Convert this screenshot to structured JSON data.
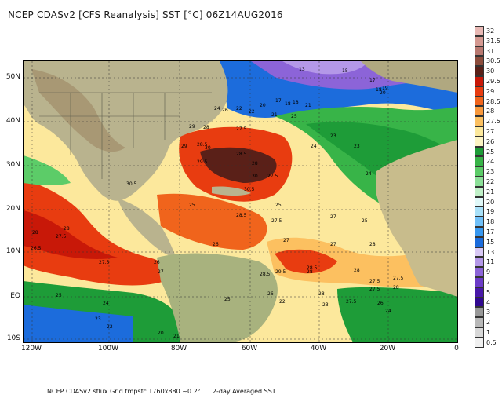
{
  "title": "NCEP CDASv2 [CFS Reanalysis] SST [°C] 06Z14AUG2016",
  "footer": {
    "left": "NCEP CDASv2 sflux Grid tmpsfc 1760x880 ~0.2°",
    "right": "2-day Averaged SST"
  },
  "lat_labels": [
    "50N",
    "40N",
    "30N",
    "20N",
    "10N",
    "EQ",
    "10S"
  ],
  "lon_labels": [
    "120W",
    "100W",
    "80W",
    "60W",
    "40W",
    "20W",
    "0"
  ],
  "colorbar": {
    "labels": [
      "32",
      "31.5",
      "31",
      "30.5",
      "30",
      "29.5",
      "29",
      "28.5",
      "28",
      "27.5",
      "27",
      "26",
      "25",
      "24",
      "23",
      "22",
      "21",
      "20",
      "19",
      "18",
      "17",
      "15",
      "13",
      "11",
      "9",
      "7",
      "5",
      "4",
      "3",
      "2",
      "1",
      "0.5"
    ],
    "colors": [
      "#e8b8b4",
      "#d49890",
      "#b87870",
      "#8c4c3c",
      "#5a2018",
      "#c81808",
      "#e83c10",
      "#f0641c",
      "#f8983c",
      "#fcc060",
      "#fce89c",
      "#fcf4c4",
      "#1e9c38",
      "#38b448",
      "#5ccc68",
      "#8ce098",
      "#c0f0c8",
      "#e0f8f8",
      "#a8e0f8",
      "#70c0f8",
      "#3898f0",
      "#1c6cdc",
      "#d8c8f4",
      "#b498e8",
      "#8c64d8",
      "#6c3cc8",
      "#4818a8",
      "#300890",
      "#989898",
      "#b8b8b8",
      "#d8d8d8",
      "#f0f0f0"
    ]
  },
  "sst_labels": [
    "13",
    "15",
    "17",
    "18",
    "19",
    "20",
    "21",
    "22",
    "23",
    "24",
    "25",
    "26",
    "27",
    "27.5",
    "28",
    "28.5",
    "29",
    "29.5",
    "30",
    "30.5"
  ],
  "map_labels": [
    {
      "t": "13"
    },
    {
      "t": "15"
    },
    {
      "t": "17"
    },
    {
      "t": "18"
    },
    {
      "t": "19"
    },
    {
      "t": "20"
    },
    {
      "t": "17"
    },
    {
      "t": "18"
    },
    {
      "t": "18"
    },
    {
      "t": "21"
    },
    {
      "t": "20"
    },
    {
      "t": "24"
    },
    {
      "t": "26"
    },
    {
      "t": "22"
    },
    {
      "t": "22"
    },
    {
      "t": "21"
    },
    {
      "t": "25"
    },
    {
      "t": "29"
    },
    {
      "t": "28"
    },
    {
      "t": "27.5"
    },
    {
      "t": "23"
    },
    {
      "t": "29"
    },
    {
      "t": "28.5"
    },
    {
      "t": "30"
    },
    {
      "t": "28.5"
    },
    {
      "t": "30"
    },
    {
      "t": "24"
    },
    {
      "t": "23"
    },
    {
      "t": "24"
    },
    {
      "t": "30.5"
    },
    {
      "t": "29.5"
    },
    {
      "t": "28"
    },
    {
      "t": "27.5"
    },
    {
      "t": "30.5"
    },
    {
      "t": "25"
    },
    {
      "t": "25"
    },
    {
      "t": "28.5"
    },
    {
      "t": "27.5"
    },
    {
      "t": "27"
    },
    {
      "t": "25"
    },
    {
      "t": "28"
    },
    {
      "t": "27.5"
    },
    {
      "t": "28"
    },
    {
      "t": "26.5"
    },
    {
      "t": "27"
    },
    {
      "t": "26"
    },
    {
      "t": "27"
    },
    {
      "t": "28"
    },
    {
      "t": "29.5"
    },
    {
      "t": "28.5"
    },
    {
      "t": "28"
    },
    {
      "t": "27.5"
    },
    {
      "t": "26"
    },
    {
      "t": "28"
    },
    {
      "t": "27.5"
    },
    {
      "t": "27.5"
    },
    {
      "t": "27.5"
    },
    {
      "t": "28.5"
    },
    {
      "t": "28"
    },
    {
      "t": "27.5"
    },
    {
      "t": "26"
    },
    {
      "t": "27"
    },
    {
      "t": "25"
    },
    {
      "t": "24"
    },
    {
      "t": "25"
    },
    {
      "t": "22"
    },
    {
      "t": "23"
    },
    {
      "t": "24"
    },
    {
      "t": "23"
    },
    {
      "t": "22"
    },
    {
      "t": "20"
    },
    {
      "t": "21"
    },
    {
      "t": "26"
    },
    {
      "t": "28"
    }
  ]
}
